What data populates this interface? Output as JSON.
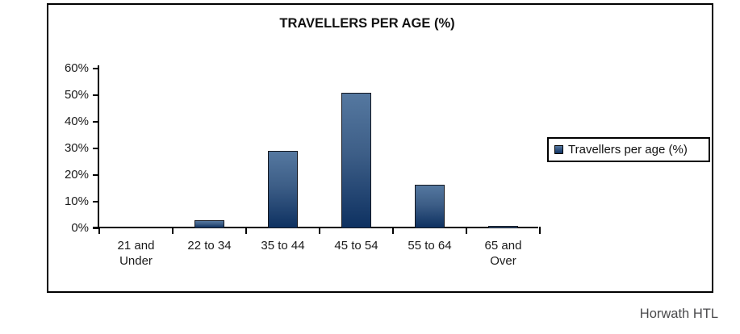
{
  "footer": {
    "brand": "Horwath HTL"
  },
  "chart_data": {
    "type": "bar",
    "title": "TRAVELLERS PER AGE (%)",
    "categories": [
      "21 and Under",
      "22 to 34",
      "35 to 44",
      "45 to 54",
      "55 to 64",
      "65 and Over"
    ],
    "category_tick_labels": [
      "21 and\nUnder",
      "22 to 34",
      "35 to 44",
      "45 to 54",
      "55 to 64",
      "65 and\nOver"
    ],
    "series": [
      {
        "name": "Travellers per age (%)",
        "values": [
          0,
          3,
          29,
          51,
          16.5,
          1
        ]
      }
    ],
    "xlabel": "",
    "ylabel": "",
    "ylim": [
      0,
      60
    ],
    "y_ticks": [
      0,
      10,
      20,
      30,
      40,
      50,
      60
    ],
    "y_tick_labels": [
      "0%",
      "10%",
      "20%",
      "30%",
      "40%",
      "50%",
      "60%"
    ],
    "grid": false,
    "legend": {
      "position": "right",
      "entries": [
        "Travellers per age (%)"
      ]
    },
    "colors": {
      "bar_gradient_top": "#5578a0",
      "bar_gradient_bottom": "#0e3161",
      "bar_border": "#14171f",
      "axis": "#000000",
      "text": "#1a1a1a",
      "footer_text": "#4a4a4c"
    }
  }
}
